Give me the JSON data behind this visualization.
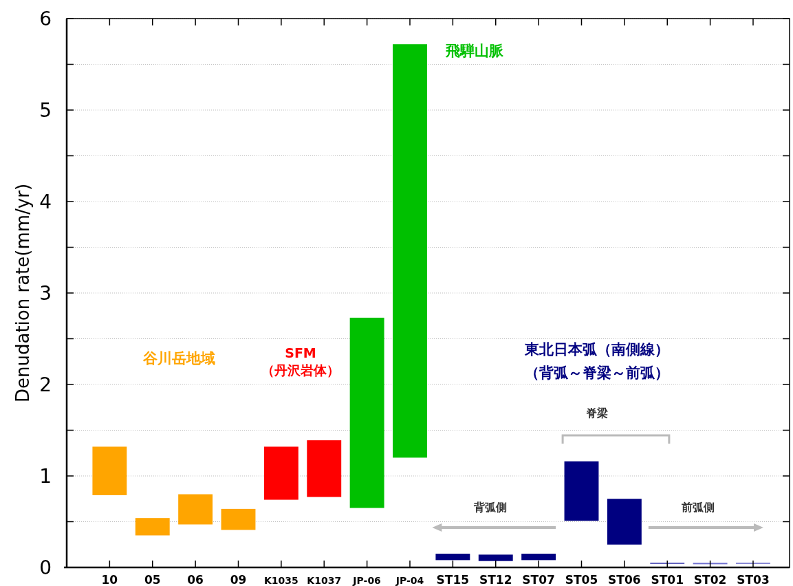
{
  "chart_data": {
    "type": "bar",
    "ylabel": "Denudation rate(mm/yr)",
    "categories": [
      "10",
      "05",
      "06",
      "09",
      "K1035",
      "K1037",
      "JP-06",
      "JP-04",
      "ST15",
      "ST12",
      "ST07",
      "ST05",
      "ST06",
      "ST01",
      "ST02",
      "ST03"
    ],
    "base": [
      0.79,
      0.35,
      0.47,
      0.41,
      0.74,
      0.77,
      0.65,
      1.2,
      0.08,
      0.07,
      0.08,
      0.51,
      0.25,
      0.04,
      0.035,
      0.04
    ],
    "values": [
      0.53,
      0.19,
      0.33,
      0.23,
      0.58,
      0.62,
      2.08,
      4.52,
      0.07,
      0.07,
      0.07,
      0.65,
      0.5,
      0.01,
      0.015,
      0.01
    ],
    "colors": [
      "#ffa500",
      "#ffa500",
      "#ffa500",
      "#ffa500",
      "#ff0000",
      "#ff0000",
      "#00c000",
      "#00c000",
      "#000080",
      "#000080",
      "#000080",
      "#000080",
      "#000080",
      "#1a1aa0",
      "#7070d0",
      "#5050c0"
    ],
    "ylim": [
      0,
      6
    ],
    "yticks": [
      0,
      {
        "value": 0.5,
        "label": null
      },
      1,
      {
        "value": 1.5,
        "label": null
      },
      2,
      {
        "value": 2.5,
        "label": null
      },
      3,
      {
        "value": 3.5,
        "label": null
      },
      4,
      {
        "value": 4.5,
        "label": null
      },
      5,
      {
        "value": 5.5,
        "label": null
      },
      6
    ],
    "grid": "y",
    "annotations": [
      "谷川岳地域",
      "SFM",
      "（丹沢岩体）",
      "飛騨山脈",
      "東北日本弧（南側線）",
      "（背弧～脊梁～前弧）",
      "脊梁",
      "背弧側",
      "前弧側"
    ]
  }
}
